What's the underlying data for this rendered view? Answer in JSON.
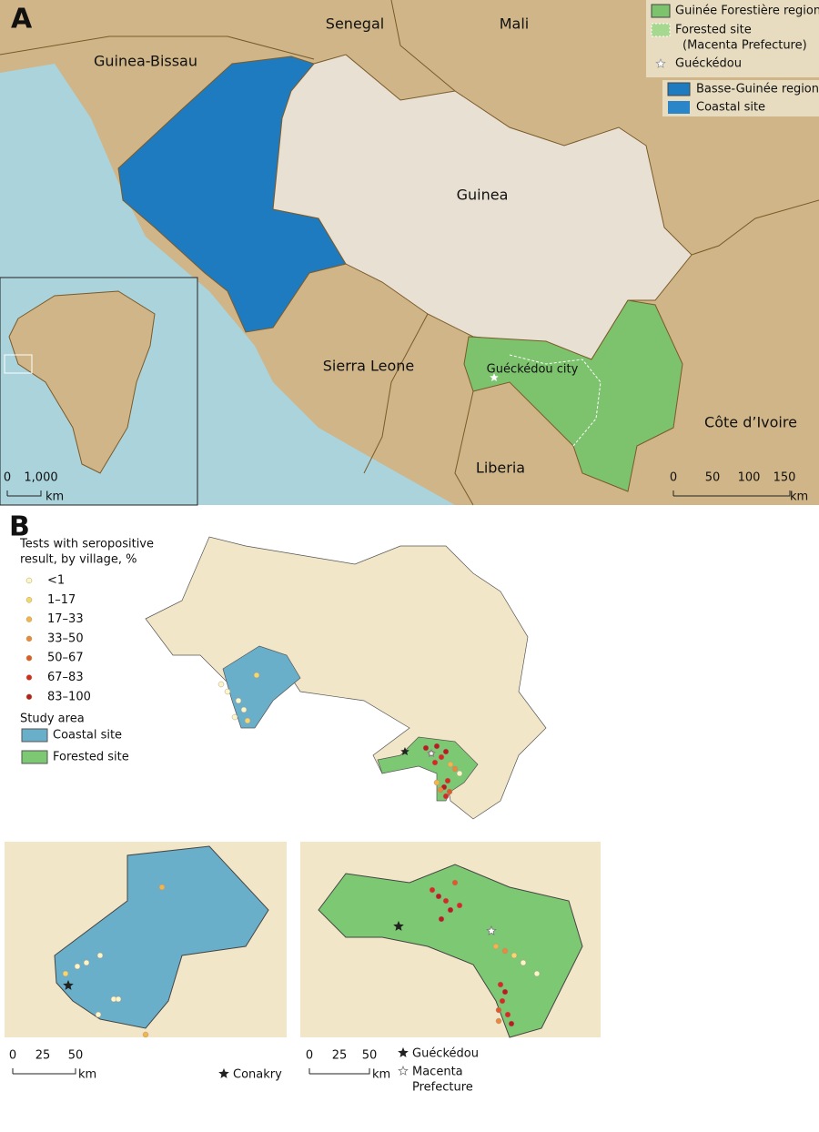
{
  "panel_a": {
    "label": "A",
    "countries": [
      "Senegal",
      "Mali",
      "Guinea-Bissau",
      "Guinea",
      "Sierra Leone",
      "Liberia",
      "Côte d’Ivoire"
    ],
    "city_label": "Guéckédou city",
    "legend": [
      {
        "label": [
          "Guinée Forestière region"
        ],
        "color": "#7dc36e"
      },
      {
        "label": [
          "Forested site",
          "(Macenta Prefecture)"
        ],
        "color": "#a6d98f"
      },
      {
        "label": [
          "Guéckédou"
        ],
        "color": "#ffffff"
      },
      {
        "label": [
          "Basse-Guinée region"
        ],
        "color": "#1f7bc0"
      },
      {
        "label": [
          "Coastal site"
        ],
        "color": "#2a86c8"
      }
    ],
    "scale": {
      "ticks": [
        "0",
        "50",
        "100",
        "150"
      ],
      "unit": "km"
    },
    "inset_scale": {
      "ticks": [
        "0",
        "1,000"
      ],
      "unit": "km"
    }
  },
  "panel_b": {
    "label": "B",
    "legend_title": [
      "Tests with seropositive",
      "result, by village, %"
    ],
    "classes": [
      {
        "label": "<1",
        "color": "#fbf6c5"
      },
      {
        "label": "1–17",
        "color": "#f5d76e"
      },
      {
        "label": "17–33",
        "color": "#f0b64c"
      },
      {
        "label": "33–50",
        "color": "#e88a3a"
      },
      {
        "label": "50–67",
        "color": "#dd5a2b"
      },
      {
        "label": "67–83",
        "color": "#d12b22"
      },
      {
        "label": "83–100",
        "color": "#b51e1e"
      }
    ],
    "study_area_title": "Study area",
    "areas": [
      {
        "label": "Coastal site",
        "color": "#6aafc9"
      },
      {
        "label": "Forested site",
        "color": "#7dc872"
      }
    ],
    "coastal_inset": {
      "scale": {
        "ticks": [
          "0",
          "25",
          "50"
        ],
        "unit": "km"
      },
      "star_label": "Conakry"
    },
    "forested_inset": {
      "scale": {
        "ticks": [
          "0",
          "25",
          "50"
        ],
        "unit": "km"
      },
      "star_label": "Guéckédou",
      "open_star_label": [
        "Macenta",
        "Prefecture"
      ]
    }
  }
}
